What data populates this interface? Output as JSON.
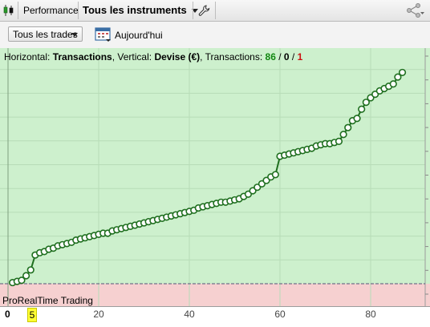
{
  "toolbar": {
    "performance_label": "Performance",
    "instruments_label": "Tous les instruments",
    "wrench_icon": "wrench-icon",
    "share_icon": "share-icon",
    "candles_icon": "candlestick-icon"
  },
  "controls": {
    "trades_select": "Tous les trades",
    "date_label": "Aujourd'hui",
    "calendar_icon": "calendar-icon"
  },
  "chart_header": {
    "prefix": "Horizontal:",
    "horizontal": "Transactions",
    "sep1": ", Vertical:",
    "vertical": "Devise (€)",
    "sep2": ", Transactions:",
    "total": "86",
    "slash1": " / ",
    "neutral": "0",
    "slash2": " / ",
    "losers": "1"
  },
  "brand": "ProRealTime Trading",
  "x_axis": {
    "zero": "0",
    "highlight": "5",
    "ticks": [
      "20",
      "40",
      "60",
      "80"
    ]
  },
  "colors": {
    "profit_zone": "#cdf0cd",
    "loss_zone": "#f6d0d0",
    "line": "#1f6f1f",
    "marker_fill": "#ffffff"
  },
  "chart_data": {
    "type": "line",
    "xlabel": "Transactions",
    "ylabel": "Devise (€)",
    "xlim": [
      0,
      93
    ],
    "ylim": [
      -1.0,
      10.0
    ],
    "grid": true,
    "x": [
      1,
      2,
      3,
      4,
      5,
      6,
      7,
      8,
      9,
      10,
      11,
      12,
      13,
      14,
      15,
      16,
      17,
      18,
      19,
      20,
      21,
      22,
      23,
      24,
      25,
      26,
      27,
      28,
      29,
      30,
      31,
      32,
      33,
      34,
      35,
      36,
      37,
      38,
      39,
      40,
      41,
      42,
      43,
      44,
      45,
      46,
      47,
      48,
      49,
      50,
      51,
      52,
      53,
      54,
      55,
      56,
      57,
      58,
      59,
      60,
      61,
      62,
      63,
      64,
      65,
      66,
      67,
      68,
      69,
      70,
      71,
      72,
      73,
      74,
      75,
      76,
      77,
      78,
      79,
      80,
      81,
      82,
      83,
      84,
      85,
      86,
      87
    ],
    "values": [
      0.05,
      0.1,
      0.15,
      0.35,
      0.6,
      1.25,
      1.35,
      1.4,
      1.5,
      1.55,
      1.65,
      1.7,
      1.75,
      1.8,
      1.9,
      1.95,
      2.0,
      2.05,
      2.1,
      2.15,
      2.2,
      2.2,
      2.3,
      2.35,
      2.4,
      2.45,
      2.5,
      2.55,
      2.6,
      2.65,
      2.7,
      2.75,
      2.8,
      2.85,
      2.9,
      2.95,
      3.0,
      3.05,
      3.1,
      3.15,
      3.2,
      3.3,
      3.35,
      3.4,
      3.45,
      3.5,
      3.55,
      3.55,
      3.6,
      3.65,
      3.7,
      3.8,
      3.9,
      4.05,
      4.2,
      4.35,
      4.5,
      4.65,
      4.75,
      5.55,
      5.6,
      5.65,
      5.7,
      5.75,
      5.8,
      5.85,
      5.9,
      6.0,
      6.05,
      6.1,
      6.1,
      6.15,
      6.2,
      6.5,
      6.8,
      7.1,
      7.2,
      7.6,
      7.9,
      8.1,
      8.25,
      8.4,
      8.5,
      8.6,
      8.7,
      9.0,
      9.2
    ]
  }
}
